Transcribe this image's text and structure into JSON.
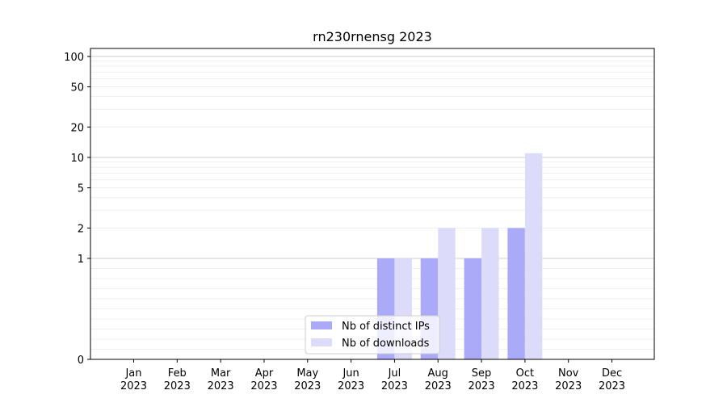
{
  "chart_data": {
    "type": "bar",
    "title": "rn230rnensg 2023",
    "xlabel": "",
    "ylabel": "",
    "y_scale": "symlog",
    "ylim": [
      0,
      120
    ],
    "y_ticks": [
      {
        "value": 0,
        "label": "0"
      },
      {
        "value": 1,
        "label": "1"
      },
      {
        "value": 2,
        "label": "2"
      },
      {
        "value": 5,
        "label": "5"
      },
      {
        "value": 10,
        "label": "10"
      },
      {
        "value": 20,
        "label": "20"
      },
      {
        "value": 50,
        "label": "50"
      },
      {
        "value": 100,
        "label": "100"
      }
    ],
    "categories": [
      {
        "month": "Jan",
        "year": "2023"
      },
      {
        "month": "Feb",
        "year": "2023"
      },
      {
        "month": "Mar",
        "year": "2023"
      },
      {
        "month": "Apr",
        "year": "2023"
      },
      {
        "month": "May",
        "year": "2023"
      },
      {
        "month": "Jun",
        "year": "2023"
      },
      {
        "month": "Jul",
        "year": "2023"
      },
      {
        "month": "Aug",
        "year": "2023"
      },
      {
        "month": "Sep",
        "year": "2023"
      },
      {
        "month": "Oct",
        "year": "2023"
      },
      {
        "month": "Nov",
        "year": "2023"
      },
      {
        "month": "Dec",
        "year": "2023"
      }
    ],
    "series": [
      {
        "name": "Nb of distinct IPs",
        "color": "#aaaaf8",
        "values": [
          0,
          0,
          0,
          0,
          0,
          0,
          1,
          1,
          1,
          2,
          0,
          0
        ]
      },
      {
        "name": "Nb of downloads",
        "color": "#dcdcfa",
        "values": [
          0,
          0,
          0,
          0,
          0,
          0,
          1,
          2,
          2,
          11,
          0,
          0
        ]
      }
    ],
    "grid": true,
    "legend_position": "lower-center"
  }
}
